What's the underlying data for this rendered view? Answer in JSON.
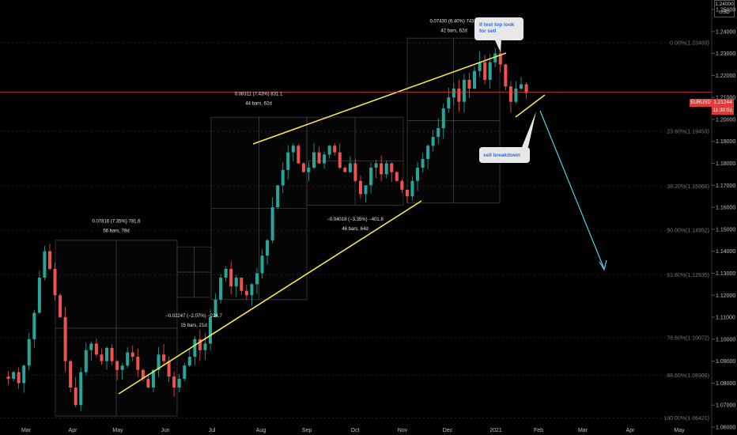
{
  "chart_data": {
    "type": "candlestick",
    "symbol": "EURUSD",
    "currency": "USD",
    "last_price": "1.21244",
    "countdown": "11:30:51",
    "ylim": [
      1.06,
      1.25
    ],
    "y_ticks": [
      "1.06000",
      "1.07000",
      "1.08000",
      "1.09000",
      "1.10000",
      "1.11000",
      "1.12000",
      "1.13000",
      "1.14000",
      "1.15000",
      "1.16000",
      "1.17000",
      "1.18000",
      "1.19000",
      "1.20000",
      "1.21000",
      "1.22000",
      "1.23000",
      "1.24000",
      "1.25000"
    ],
    "x_months": [
      "Mar",
      "Apr",
      "May",
      "Jun",
      "Jul",
      "Aug",
      "Sep",
      "Oct",
      "Nov",
      "Dec",
      "2021",
      "Feb",
      "Mar",
      "Apr",
      "May"
    ],
    "series": [
      {
        "name": "price_path",
        "values": [
          [
            0,
            1.083
          ],
          [
            1,
            1.082
          ],
          [
            2,
            1.085
          ],
          [
            3,
            1.08
          ],
          [
            4,
            1.088
          ],
          [
            5,
            1.1
          ],
          [
            6,
            1.112
          ],
          [
            7,
            1.128
          ],
          [
            8,
            1.14
          ],
          [
            9,
            1.132
          ],
          [
            10,
            1.12
          ],
          [
            11,
            1.11
          ],
          [
            12,
            1.09
          ],
          [
            13,
            1.078
          ],
          [
            14,
            1.07
          ],
          [
            15,
            1.085
          ],
          [
            16,
            1.095
          ],
          [
            17,
            1.098
          ],
          [
            18,
            1.093
          ],
          [
            19,
            1.09
          ],
          [
            20,
            1.096
          ],
          [
            21,
            1.09
          ],
          [
            22,
            1.086
          ],
          [
            23,
            1.088
          ],
          [
            24,
            1.094
          ],
          [
            25,
            1.092
          ],
          [
            26,
            1.086
          ],
          [
            27,
            1.082
          ],
          [
            28,
            1.078
          ],
          [
            29,
            1.086
          ],
          [
            30,
            1.093
          ],
          [
            31,
            1.09
          ],
          [
            32,
            1.083
          ],
          [
            33,
            1.078
          ],
          [
            34,
            1.082
          ],
          [
            35,
            1.088
          ],
          [
            36,
            1.092
          ],
          [
            37,
            1.1
          ],
          [
            38,
            1.095
          ],
          [
            39,
            1.098
          ],
          [
            40,
            1.11
          ],
          [
            41,
            1.118
          ],
          [
            42,
            1.128
          ],
          [
            43,
            1.132
          ],
          [
            44,
            1.124
          ],
          [
            45,
            1.128
          ],
          [
            46,
            1.122
          ],
          [
            47,
            1.12
          ],
          [
            48,
            1.125
          ],
          [
            49,
            1.13
          ],
          [
            50,
            1.138
          ],
          [
            51,
            1.145
          ],
          [
            52,
            1.16
          ],
          [
            53,
            1.17
          ],
          [
            54,
            1.177
          ],
          [
            55,
            1.185
          ],
          [
            56,
            1.188
          ],
          [
            57,
            1.18
          ],
          [
            58,
            1.176
          ],
          [
            59,
            1.178
          ],
          [
            60,
            1.185
          ],
          [
            61,
            1.18
          ],
          [
            62,
            1.184
          ],
          [
            63,
            1.188
          ],
          [
            64,
            1.185
          ],
          [
            65,
            1.178
          ],
          [
            66,
            1.176
          ],
          [
            67,
            1.18
          ],
          [
            68,
            1.172
          ],
          [
            69,
            1.166
          ],
          [
            70,
            1.17
          ],
          [
            71,
            1.178
          ],
          [
            72,
            1.18
          ],
          [
            73,
            1.175
          ],
          [
            74,
            1.18
          ],
          [
            75,
            1.176
          ],
          [
            76,
            1.172
          ],
          [
            77,
            1.168
          ],
          [
            78,
            1.165
          ],
          [
            79,
            1.172
          ],
          [
            80,
            1.178
          ],
          [
            81,
            1.182
          ],
          [
            82,
            1.188
          ],
          [
            83,
            1.192
          ],
          [
            84,
            1.196
          ],
          [
            85,
            1.205
          ],
          [
            86,
            1.21
          ],
          [
            87,
            1.214
          ],
          [
            88,
            1.208
          ],
          [
            89,
            1.218
          ],
          [
            90,
            1.214
          ],
          [
            91,
            1.222
          ],
          [
            92,
            1.226
          ],
          [
            93,
            1.218
          ],
          [
            94,
            1.226
          ],
          [
            95,
            1.23
          ],
          [
            96,
            1.225
          ],
          [
            97,
            1.215
          ],
          [
            98,
            1.208
          ],
          [
            99,
            1.214
          ],
          [
            100,
            1.216
          ],
          [
            101,
            1.212
          ]
        ]
      }
    ],
    "fib_levels": [
      {
        "label": "0.00%(1.23483)",
        "value": 1.23483
      },
      {
        "label": "23.60%(1.19453)",
        "value": 1.19453
      },
      {
        "label": "38.20%(1.16966)",
        "value": 1.16966
      },
      {
        "label": "50.00%(1.14952)",
        "value": 1.14952
      },
      {
        "label": "61.80%(1.12935)",
        "value": 1.12935
      },
      {
        "label": "78.60%(1.10072)",
        "value": 1.10072
      },
      {
        "label": "88.60%(1.08366)",
        "value": 1.08366
      },
      {
        "label": "100.00%(1.06421)",
        "value": 1.06421
      }
    ],
    "measurements": [
      {
        "line1": "0.07816 (7.35%) 781.6",
        "line2": "56 bars, 78d"
      },
      {
        "line1": "−0.02247 (−2.07%) −224.7",
        "line2": "15 bars, 21d"
      },
      {
        "line1": "0.08311 (7.43%) 831.1",
        "line2": "44 bars, 62d"
      },
      {
        "line1": "−0.04018 (−3.35%) −401.8",
        "line2": "46 bars, 64d"
      },
      {
        "line1": "0.07430 (6.40%) 743.0",
        "line2": "42 bars, 62d"
      }
    ],
    "callouts": [
      {
        "line1": "if test top look",
        "line2": "for sell"
      },
      {
        "line1": "sell breakdown",
        "line2": ""
      }
    ],
    "colors": {
      "up": "#26a69a",
      "down": "#ef5350",
      "trendline": "#f5ea4a",
      "projection": "#4dd0e1",
      "current": "#e53935",
      "background": "#000000"
    }
  }
}
